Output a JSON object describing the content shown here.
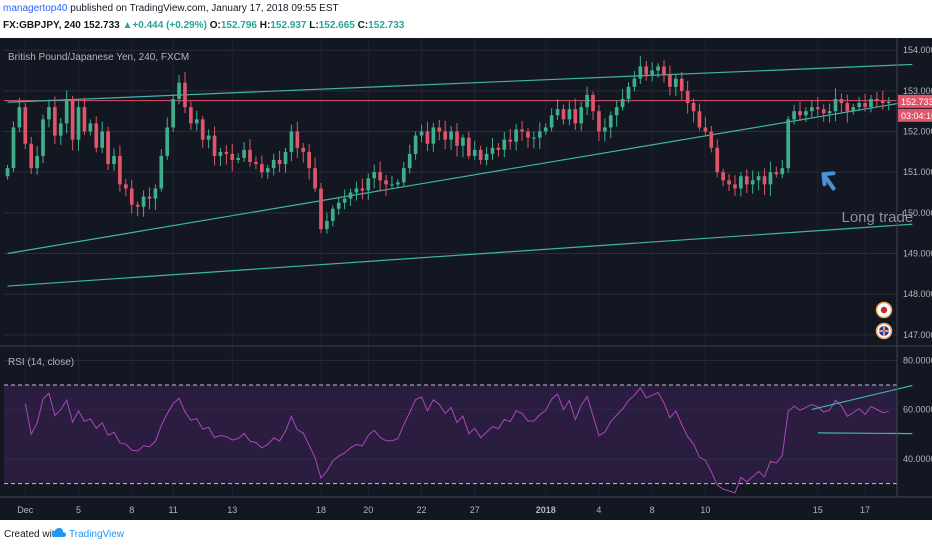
{
  "header": {
    "publisher": "managertop40",
    "published_text": " published on TradingView.com, January 17, 2018 09:55 EST",
    "symbol": "FX:GBPJPY, 240",
    "last": "152.733",
    "change": "+0.444 (+0.29%)",
    "ohlc": [
      {
        "label": "O:",
        "value": "152.796"
      },
      {
        "label": "H:",
        "value": "152.937"
      },
      {
        "label": "L:",
        "value": "152.665"
      },
      {
        "label": "C:",
        "value": "152.733"
      }
    ]
  },
  "footer": {
    "created_with": "Created with",
    "brand": "TradingView"
  },
  "chart_data": {
    "type": "candlestick",
    "title": "British Pound/Japanese Yen, 240, FXCM",
    "price_axis": {
      "ticks": [
        "154.000",
        "153.000",
        "152.000",
        "151.000",
        "150.000",
        "149.000",
        "148.000",
        "147.000"
      ],
      "range": [
        146.75,
        154.3
      ]
    },
    "time_axis": {
      "ticks": [
        "Dec",
        "5",
        "8",
        "11",
        "13",
        "18",
        "20",
        "22",
        "27",
        "2018",
        "4",
        "8",
        "10",
        "15",
        "17"
      ],
      "tick_index": [
        3,
        12,
        21,
        28,
        38,
        53,
        61,
        70,
        79,
        91,
        100,
        109,
        118,
        137,
        145
      ]
    },
    "last_price_label": "152.733",
    "countdown_label": "03:04:16",
    "horizontal_line": {
      "price": 152.76,
      "color": "#e0556a"
    },
    "trendlines": [
      {
        "from": {
          "index": 0,
          "price": 152.72
        },
        "to": {
          "index": 153,
          "price": 153.65
        }
      },
      {
        "from": {
          "index": 0,
          "price": 149.0
        },
        "to": {
          "index": 153,
          "price": 152.75
        }
      },
      {
        "from": {
          "index": 0,
          "price": 148.2
        },
        "to": {
          "index": 153,
          "price": 149.72
        }
      }
    ],
    "annotation": {
      "text": "Long trade",
      "index": 140,
      "price": 149.9
    },
    "candles_close": [
      151.1,
      152.1,
      152.6,
      151.7,
      151.1,
      151.4,
      152.3,
      152.6,
      151.9,
      152.2,
      152.8,
      151.8,
      152.6,
      152.0,
      152.2,
      151.6,
      152.0,
      151.2,
      151.4,
      150.7,
      150.6,
      150.2,
      150.15,
      150.4,
      150.35,
      150.6,
      151.4,
      152.1,
      152.8,
      153.2,
      152.6,
      152.2,
      152.3,
      151.8,
      151.9,
      151.4,
      151.5,
      151.45,
      151.3,
      151.35,
      151.55,
      151.25,
      151.2,
      151.0,
      151.1,
      151.3,
      151.2,
      151.5,
      152.0,
      151.6,
      151.5,
      151.1,
      150.6,
      149.6,
      149.8,
      150.1,
      150.25,
      150.35,
      150.5,
      150.6,
      150.55,
      150.85,
      151.0,
      150.8,
      150.7,
      150.7,
      150.75,
      151.1,
      151.45,
      151.9,
      152.0,
      151.7,
      152.1,
      152.0,
      151.8,
      152.0,
      151.65,
      151.85,
      151.4,
      151.55,
      151.3,
      151.45,
      151.6,
      151.55,
      151.8,
      151.75,
      152.05,
      152.0,
      151.85,
      151.85,
      152.0,
      152.1,
      152.4,
      152.55,
      152.3,
      152.55,
      152.2,
      152.6,
      152.9,
      152.5,
      152.0,
      152.1,
      152.4,
      152.6,
      152.8,
      153.1,
      153.3,
      153.6,
      153.4,
      153.5,
      153.6,
      153.4,
      153.1,
      153.3,
      153.0,
      152.7,
      152.5,
      152.1,
      152.0,
      151.6,
      151.0,
      150.8,
      150.7,
      150.6,
      150.9,
      150.7,
      150.8,
      150.9,
      150.7,
      151.0,
      150.95,
      151.1,
      152.3,
      152.5,
      152.4,
      152.5,
      152.6,
      152.55,
      152.45,
      152.5,
      152.8,
      152.7,
      152.5,
      152.6,
      152.7,
      152.6,
      152.8,
      152.75,
      152.7,
      152.73
    ],
    "rsi": {
      "title": "RSI (14, close)",
      "axis_ticks": [
        "80.0000",
        "60.0000",
        "40.0000"
      ],
      "range": [
        25,
        85
      ],
      "upper_band": 70,
      "lower_band": 30,
      "trendlines": [
        {
          "from": {
            "index": 136,
            "value": 60.1
          },
          "to": {
            "index": 153,
            "value": 69.8
          }
        },
        {
          "from": {
            "index": 137,
            "value": 50.6
          },
          "to": {
            "index": 153,
            "value": 50.3
          }
        }
      ]
    }
  }
}
